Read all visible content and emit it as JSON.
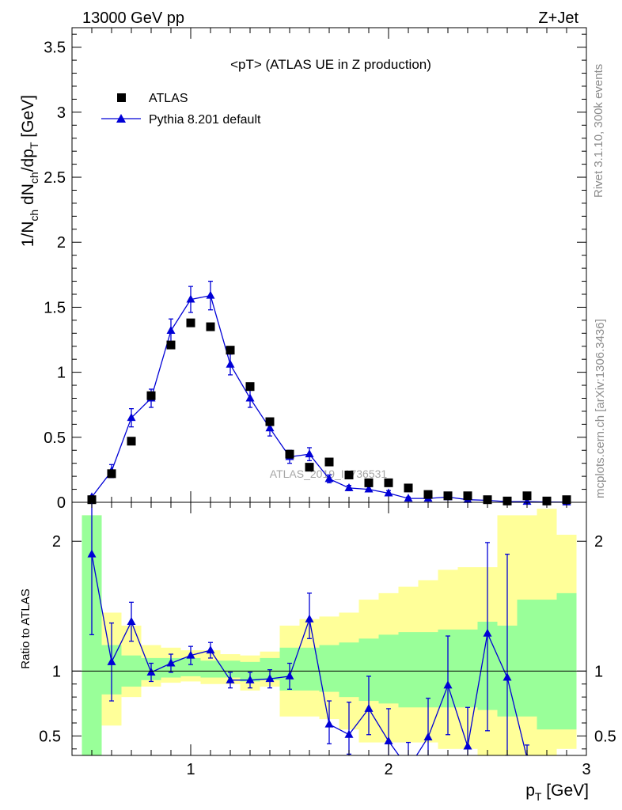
{
  "header": {
    "left_label": "13000 GeV pp",
    "right_label": "Z+Jet"
  },
  "side_labels": {
    "rivet": "Rivet 3.1.10,  300k events",
    "mcplots": "mcplots.cern.ch [arXiv:1306.3436]"
  },
  "watermark": "ATLAS_2019_I1736531",
  "colors": {
    "atlas": "#000000",
    "pythia": "#0000d6",
    "band_inner": "#99ff99",
    "band_outer": "#ffff99"
  },
  "chart_data": [
    {
      "type": "scatter",
      "title": "<pT> (ATLAS UE in Z production)",
      "xlabel": "p_T [GeV]",
      "ylabel": "1/N_ch dN_ch/dp_T [GeV]",
      "xlim": [
        0.4,
        3.0
      ],
      "ylim": [
        0,
        3.65
      ],
      "xticks": [
        1,
        2,
        3
      ],
      "yticks": [
        0,
        0.5,
        1,
        1.5,
        2,
        2.5,
        3,
        3.5
      ],
      "ytick_labels": [
        "0",
        "0.5",
        "1",
        "1.5",
        "2",
        "2.5",
        "3",
        "3.5"
      ],
      "legend_position": "top-left",
      "x": [
        0.5,
        0.6,
        0.7,
        0.8,
        0.9,
        1.0,
        1.1,
        1.2,
        1.3,
        1.4,
        1.5,
        1.6,
        1.7,
        1.8,
        1.9,
        2.0,
        2.1,
        2.2,
        2.3,
        2.4,
        2.5,
        2.6,
        2.7,
        2.8,
        2.9
      ],
      "series": [
        {
          "name": "ATLAS",
          "marker": "square",
          "values": [
            0.02,
            0.22,
            0.47,
            0.82,
            1.21,
            1.38,
            1.35,
            1.17,
            0.89,
            0.62,
            0.37,
            0.27,
            0.31,
            0.21,
            0.15,
            0.15,
            0.11,
            0.06,
            0.05,
            0.05,
            0.02,
            0.01,
            0.05,
            0.01,
            0.02
          ]
        },
        {
          "name": "Pythia 8.201 default",
          "marker": "triangle",
          "values": [
            0.04,
            0.24,
            0.65,
            0.8,
            1.32,
            1.56,
            1.59,
            1.06,
            0.8,
            0.57,
            0.35,
            0.37,
            0.18,
            0.11,
            0.1,
            0.07,
            0.03,
            0.03,
            0.04,
            0.02,
            0.015,
            0.005,
            0.005,
            0.002,
            0.001
          ],
          "errors": [
            0.01,
            0.05,
            0.07,
            0.07,
            0.09,
            0.1,
            0.11,
            0.08,
            0.07,
            0.06,
            0.05,
            0.05,
            0.03,
            0.02,
            0.02,
            0.02,
            0.01,
            0.01,
            0.01,
            0.01,
            0.005,
            0.004,
            0.003,
            0.002,
            0.001
          ]
        }
      ]
    },
    {
      "type": "line",
      "ylabel": "Ratio to ATLAS",
      "xlabel": "p_T [GeV]",
      "xlim": [
        0.4,
        3.0
      ],
      "ylim": [
        0.35,
        2.3
      ],
      "xticks": [
        1,
        2,
        3
      ],
      "yticks": [
        0.5,
        1,
        2
      ],
      "ytick_labels": [
        "0.5",
        "1",
        "2"
      ],
      "reference_line": 1,
      "bands": {
        "edges": [
          0.45,
          0.55,
          0.65,
          0.75,
          0.85,
          0.95,
          1.05,
          1.15,
          1.25,
          1.35,
          1.45,
          1.55,
          1.65,
          1.75,
          1.85,
          1.95,
          2.05,
          2.15,
          2.25,
          2.35,
          2.45,
          2.55,
          2.65,
          2.75,
          2.85,
          2.95
        ],
        "inner_low": [
          0.2,
          0.82,
          0.88,
          0.93,
          0.95,
          0.96,
          0.95,
          0.95,
          0.92,
          0.93,
          0.85,
          0.85,
          0.84,
          0.8,
          0.77,
          0.75,
          0.72,
          0.72,
          0.72,
          0.72,
          0.7,
          0.65,
          0.65,
          0.55,
          0.55
        ],
        "inner_high": [
          2.2,
          1.2,
          1.12,
          1.1,
          1.1,
          1.1,
          1.08,
          1.08,
          1.07,
          1.1,
          1.18,
          1.18,
          1.2,
          1.22,
          1.25,
          1.28,
          1.3,
          1.3,
          1.32,
          1.32,
          1.38,
          1.35,
          1.55,
          1.55,
          1.6
        ],
        "outer_low": [
          0.2,
          0.58,
          0.8,
          0.88,
          0.91,
          0.92,
          0.9,
          0.9,
          0.85,
          0.88,
          0.65,
          0.65,
          0.63,
          0.55,
          0.45,
          0.45,
          0.45,
          0.45,
          0.4,
          0.4,
          0.35,
          0.35,
          0.3,
          0.35,
          0.4
        ],
        "outer_high": [
          2.2,
          1.45,
          1.35,
          1.2,
          1.18,
          1.16,
          1.16,
          1.13,
          1.12,
          1.15,
          1.35,
          1.4,
          1.42,
          1.45,
          1.55,
          1.6,
          1.65,
          1.7,
          1.78,
          1.8,
          1.8,
          2.2,
          2.2,
          2.25,
          2.05
        ]
      },
      "x": [
        0.5,
        0.6,
        0.7,
        0.8,
        0.9,
        1.0,
        1.1,
        1.2,
        1.3,
        1.4,
        1.5,
        1.6,
        1.7,
        1.8,
        1.9,
        2.0,
        2.1,
        2.2,
        2.3,
        2.4,
        2.5,
        2.6,
        2.7
      ],
      "series": [
        {
          "name": "Pythia 8.201 default",
          "values": [
            1.9,
            1.07,
            1.38,
            0.99,
            1.06,
            1.12,
            1.16,
            0.93,
            0.93,
            0.94,
            0.96,
            1.4,
            0.59,
            0.51,
            0.71,
            0.46,
            0.25,
            0.49,
            0.89,
            0.42,
            1.29,
            0.95,
            0.33
          ],
          "err_low": [
            0.62,
            0.3,
            0.15,
            0.07,
            0.07,
            0.07,
            0.06,
            0.06,
            0.06,
            0.07,
            0.1,
            0.15,
            0.15,
            0.15,
            0.2,
            0.2,
            0.2,
            0.25,
            0.38,
            0.2,
            0.75,
            0.6,
            0.1
          ],
          "err_high": [
            0.62,
            0.3,
            0.15,
            0.07,
            0.07,
            0.07,
            0.06,
            0.06,
            0.06,
            0.07,
            0.1,
            0.2,
            0.18,
            0.25,
            0.25,
            0.25,
            0.2,
            0.3,
            0.38,
            0.3,
            0.7,
            0.95,
            0.1
          ]
        }
      ]
    }
  ]
}
